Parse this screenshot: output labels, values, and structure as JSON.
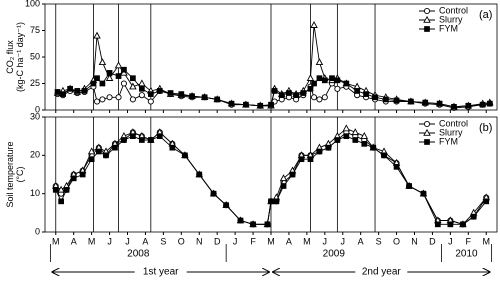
{
  "chart_data": [
    {
      "type": "line",
      "panel_label": "(a)",
      "ylabel": [
        "CO₂ flux",
        "(kg-C ha⁻¹ day⁻¹)"
      ],
      "ylim": [
        0,
        100
      ],
      "yticks": [
        0,
        25,
        50,
        75,
        100
      ],
      "xlim": [
        -0.6,
        24.6
      ],
      "vlines": [
        0,
        2.1,
        3.5,
        5.3,
        12.0,
        14.2,
        15.7,
        17.8
      ],
      "legend": "upper right",
      "x": [
        0.1,
        0.4,
        0.8,
        1.2,
        1.6,
        2.1,
        2.3,
        2.6,
        3.0,
        3.5,
        3.8,
        4.3,
        4.8,
        5.3,
        5.8,
        6.4,
        7.0,
        7.6,
        8.3,
        9.0,
        9.8,
        10.6,
        11.4,
        12.0,
        12.2,
        12.6,
        13.0,
        13.4,
        13.8,
        14.2,
        14.4,
        14.7,
        15.0,
        15.4,
        15.7,
        16.2,
        16.8,
        17.3,
        17.8,
        18.4,
        19.0,
        19.8,
        20.6,
        21.4,
        22.2,
        23.0,
        23.8,
        24.2
      ],
      "series": [
        {
          "name": "Control",
          "color": "#000000",
          "marker": "circle",
          "fill": "#ffffff",
          "values": [
            15,
            14,
            18,
            16,
            17,
            22,
            8,
            10,
            12,
            12,
            25,
            10,
            14,
            8,
            18,
            15,
            13,
            12,
            12,
            10,
            5,
            5,
            4,
            4,
            8,
            10,
            12,
            10,
            14,
            22,
            12,
            10,
            12,
            25,
            20,
            22,
            14,
            12,
            10,
            8,
            8,
            8,
            6,
            5,
            2,
            3,
            5,
            6
          ]
        },
        {
          "name": "Slurry",
          "color": "#000000",
          "marker": "triangle",
          "fill": "#ffffff",
          "values": [
            16,
            18,
            20,
            17,
            20,
            28,
            70,
            45,
            30,
            42,
            35,
            22,
            25,
            18,
            20,
            15,
            14,
            13,
            12,
            10,
            6,
            5,
            4,
            4,
            20,
            15,
            18,
            15,
            18,
            30,
            80,
            45,
            30,
            28,
            30,
            25,
            22,
            18,
            14,
            12,
            10,
            8,
            7,
            6,
            3,
            4,
            6,
            7
          ]
        },
        {
          "name": "FYM",
          "color": "#000000",
          "marker": "square",
          "fill": "#000000",
          "values": [
            17,
            15,
            20,
            18,
            18,
            25,
            30,
            25,
            35,
            32,
            38,
            30,
            20,
            15,
            18,
            16,
            15,
            13,
            12,
            10,
            6,
            5,
            4,
            5,
            18,
            14,
            16,
            14,
            16,
            20,
            25,
            30,
            28,
            30,
            28,
            25,
            18,
            15,
            12,
            10,
            9,
            8,
            7,
            6,
            3,
            4,
            5,
            6
          ]
        }
      ]
    },
    {
      "type": "line",
      "panel_label": "(b)",
      "ylabel": [
        "Soil temperature",
        "(°C)"
      ],
      "ylim": [
        0,
        30
      ],
      "yticks": [
        0,
        10,
        20,
        30
      ],
      "xlim": [
        -0.6,
        24.6
      ],
      "vlines": [
        0,
        2.1,
        3.5,
        5.3,
        12.0,
        14.2,
        15.7,
        17.8
      ],
      "legend": "upper right",
      "xticks": [
        {
          "value": 0,
          "label": "M"
        },
        {
          "value": 1,
          "label": "A"
        },
        {
          "value": 2,
          "label": "M"
        },
        {
          "value": 3,
          "label": "J"
        },
        {
          "value": 4,
          "label": "J"
        },
        {
          "value": 5,
          "label": "A"
        },
        {
          "value": 6,
          "label": "S"
        },
        {
          "value": 7,
          "label": "O"
        },
        {
          "value": 8,
          "label": "N"
        },
        {
          "value": 9,
          "label": "D"
        },
        {
          "value": 10,
          "label": "J"
        },
        {
          "value": 11,
          "label": "F"
        },
        {
          "value": 12,
          "label": "M"
        },
        {
          "value": 13,
          "label": "A"
        },
        {
          "value": 14,
          "label": "M"
        },
        {
          "value": 15,
          "label": "J"
        },
        {
          "value": 16,
          "label": "J"
        },
        {
          "value": 17,
          "label": "A"
        },
        {
          "value": 18,
          "label": "S"
        },
        {
          "value": 19,
          "label": "O"
        },
        {
          "value": 20,
          "label": "N"
        },
        {
          "value": 21,
          "label": "D"
        },
        {
          "value": 22,
          "label": "J"
        },
        {
          "value": 23,
          "label": "F"
        },
        {
          "value": 24,
          "label": "M"
        }
      ],
      "year_labels": [
        "2008",
        "2009",
        "2010"
      ],
      "period_labels": [
        "1st year",
        "2nd year"
      ],
      "x": [
        0,
        0.3,
        0.6,
        1.0,
        1.5,
        2.0,
        2.4,
        2.8,
        3.3,
        3.8,
        4.3,
        4.8,
        5.3,
        5.8,
        6.5,
        7.2,
        8.0,
        8.8,
        9.5,
        10.3,
        11.0,
        11.8,
        12.0,
        12.3,
        12.7,
        13.2,
        13.7,
        14.2,
        14.7,
        15.2,
        15.7,
        16.2,
        16.7,
        17.2,
        17.7,
        18.3,
        19.0,
        19.7,
        20.5,
        21.3,
        22.0,
        22.7,
        23.3,
        24.0
      ],
      "series": [
        {
          "name": "Control",
          "color": "#000000",
          "marker": "circle",
          "fill": "#ffffff",
          "values": [
            12,
            10,
            11,
            15,
            16,
            20,
            22,
            20,
            23,
            24,
            26,
            25,
            24,
            26,
            23,
            20,
            15,
            10,
            7,
            3,
            2,
            2,
            8,
            8,
            13,
            15,
            20,
            20,
            21,
            22,
            24,
            26,
            25,
            24,
            22,
            20,
            18,
            12,
            10,
            3,
            3,
            2,
            4,
            9
          ]
        },
        {
          "name": "Slurry",
          "color": "#000000",
          "marker": "triangle",
          "fill": "#ffffff",
          "values": [
            12,
            11,
            12,
            15,
            16,
            21,
            22,
            21,
            23,
            25,
            26,
            25,
            24,
            26,
            23,
            20,
            15,
            10,
            7,
            3,
            2,
            2,
            8,
            9,
            14,
            16,
            20,
            20,
            22,
            23,
            25,
            27,
            26,
            25,
            22,
            21,
            18,
            12,
            10,
            3,
            3,
            2,
            5,
            9
          ]
        },
        {
          "name": "FYM",
          "color": "#000000",
          "marker": "square",
          "fill": "#000000",
          "values": [
            11,
            8,
            11,
            14,
            15,
            19,
            21,
            20,
            22,
            24,
            25,
            24,
            24,
            25,
            22,
            20,
            15,
            10,
            7,
            3,
            2,
            2,
            8,
            8,
            12,
            15,
            19,
            19,
            21,
            22,
            24,
            25,
            24,
            23,
            22,
            20,
            17,
            12,
            10,
            2,
            2,
            2,
            4,
            8
          ]
        }
      ]
    }
  ]
}
